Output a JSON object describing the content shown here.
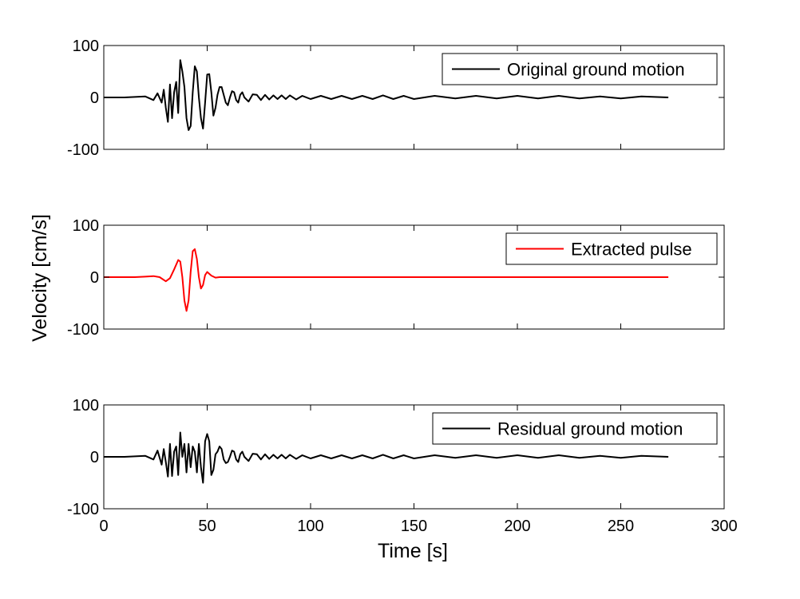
{
  "figure": {
    "ylabel": "Velocity [cm/s]",
    "xlabel": "Time [s]"
  },
  "chart_data": [
    {
      "type": "line",
      "panel": "top",
      "xlim": [
        0,
        300
      ],
      "ylim": [
        -100,
        100
      ],
      "yticks": [
        100,
        0,
        -100
      ],
      "xticks": [
        0,
        50,
        100,
        150,
        200,
        250,
        300
      ],
      "show_x_ticklabels": false,
      "grid": false,
      "legend_position": "top-right",
      "series": [
        {
          "name": "Original ground motion",
          "color": "#000000",
          "x": [
            0,
            10,
            20,
            24,
            26,
            28,
            29,
            30,
            31,
            32,
            33,
            34,
            35,
            36,
            37,
            38,
            39,
            40,
            41,
            42,
            43,
            44,
            45,
            46,
            47,
            48,
            49,
            50,
            51,
            52,
            53,
            54,
            55,
            56,
            57,
            58,
            59,
            60,
            61,
            62,
            63,
            64,
            65,
            66,
            67,
            68,
            70,
            72,
            74,
            76,
            78,
            80,
            82,
            84,
            86,
            88,
            90,
            93,
            96,
            100,
            105,
            110,
            115,
            120,
            125,
            130,
            135,
            140,
            145,
            150,
            160,
            170,
            180,
            190,
            200,
            210,
            220,
            230,
            240,
            250,
            260,
            273
          ],
          "y": [
            0,
            0,
            2,
            -5,
            8,
            -10,
            15,
            -20,
            -47,
            25,
            -40,
            10,
            30,
            -30,
            72,
            50,
            20,
            -40,
            -63,
            -55,
            10,
            60,
            50,
            0,
            -40,
            -60,
            -10,
            44,
            45,
            10,
            -35,
            -20,
            5,
            20,
            20,
            5,
            -10,
            -15,
            0,
            12,
            10,
            -5,
            -10,
            5,
            10,
            0,
            -8,
            6,
            5,
            -5,
            5,
            -4,
            4,
            -3,
            4,
            -3,
            4,
            -4,
            3,
            -3,
            3,
            -3,
            3,
            -3,
            3,
            -3,
            4,
            -3,
            3,
            -3,
            3,
            -2,
            3,
            -2,
            3,
            -2,
            3,
            -2,
            2,
            -2,
            2,
            0
          ]
        }
      ]
    },
    {
      "type": "line",
      "panel": "middle",
      "xlim": [
        0,
        300
      ],
      "ylim": [
        -100,
        100
      ],
      "yticks": [
        100,
        0,
        -100
      ],
      "xticks": [
        0,
        50,
        100,
        150,
        200,
        250,
        300
      ],
      "show_x_ticklabels": false,
      "grid": false,
      "legend_position": "top-right",
      "series": [
        {
          "name": "Extracted pulse",
          "color": "#ff0000",
          "x": [
            0,
            15,
            20,
            24,
            27,
            30,
            32,
            34,
            36,
            37,
            38,
            39,
            40,
            41,
            42,
            43,
            44,
            45,
            46,
            47,
            48,
            49,
            50,
            52,
            54,
            56,
            60,
            273
          ],
          "y": [
            0,
            0,
            1,
            2,
            0,
            -8,
            -2,
            15,
            33,
            30,
            0,
            -45,
            -65,
            -45,
            10,
            50,
            54,
            35,
            0,
            -22,
            -15,
            4,
            10,
            3,
            -1,
            0,
            0,
            0
          ]
        }
      ]
    },
    {
      "type": "line",
      "panel": "bottom",
      "xlim": [
        0,
        300
      ],
      "ylim": [
        -100,
        100
      ],
      "yticks": [
        100,
        0,
        -100
      ],
      "xticks": [
        0,
        50,
        100,
        150,
        200,
        250,
        300
      ],
      "show_x_ticklabels": true,
      "grid": false,
      "legend_position": "top-right",
      "series": [
        {
          "name": "Residual ground motion",
          "color": "#000000",
          "x": [
            0,
            10,
            20,
            24,
            26,
            28,
            29,
            30,
            31,
            32,
            33,
            34,
            35,
            36,
            37,
            38,
            39,
            40,
            41,
            42,
            43,
            44,
            45,
            46,
            47,
            48,
            49,
            50,
            51,
            52,
            53,
            54,
            55,
            56,
            57,
            58,
            59,
            60,
            61,
            62,
            63,
            64,
            65,
            66,
            67,
            68,
            70,
            72,
            74,
            76,
            78,
            80,
            82,
            84,
            86,
            88,
            90,
            93,
            96,
            100,
            105,
            110,
            115,
            120,
            125,
            130,
            135,
            140,
            145,
            150,
            160,
            170,
            180,
            190,
            200,
            210,
            220,
            230,
            240,
            250,
            260,
            273
          ],
          "y": [
            0,
            0,
            2,
            -5,
            12,
            -15,
            15,
            -10,
            -38,
            25,
            -37,
            10,
            20,
            -35,
            47,
            0,
            25,
            -30,
            25,
            -20,
            20,
            10,
            -30,
            25,
            -20,
            -50,
            30,
            44,
            30,
            -35,
            -25,
            5,
            10,
            20,
            15,
            -5,
            -12,
            -10,
            0,
            12,
            10,
            -5,
            -10,
            5,
            10,
            0,
            -8,
            6,
            5,
            -5,
            5,
            -4,
            4,
            -3,
            4,
            -3,
            4,
            -4,
            3,
            -3,
            3,
            -3,
            3,
            -3,
            3,
            -3,
            4,
            -3,
            3,
            -3,
            3,
            -2,
            3,
            -2,
            3,
            -2,
            3,
            -2,
            2,
            -2,
            2,
            0
          ]
        }
      ]
    }
  ]
}
